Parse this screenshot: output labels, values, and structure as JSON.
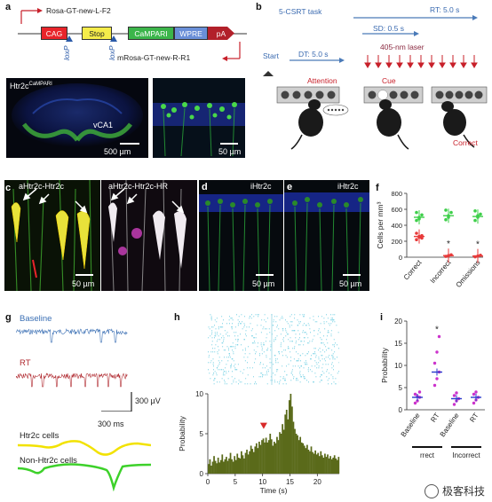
{
  "panels": {
    "a": {
      "label": "a",
      "primers": {
        "forward": "Rosa-GT-new-L-F2",
        "reverse": "mRosa-GT-new-R-R1"
      },
      "construct": {
        "segments": [
          "CAG",
          "Stop",
          "CaMPARI",
          "WPRE",
          "pA"
        ],
        "lox_labels": [
          "loxP",
          "loxP"
        ],
        "colors": {
          "CAG": "#e8242a",
          "Stop": "#f5ec4a",
          "CaMPARI": "#3bb54a",
          "WPRE": "#6a8fd8",
          "pA": "#b2202a"
        }
      },
      "brain_image": {
        "title": "Htr2c",
        "title_sup": "CaMPARI",
        "region": "vCA1",
        "scale": "500 µm"
      },
      "zoom_image": {
        "scale": "50 µm"
      }
    },
    "b": {
      "label": "b",
      "task_title": "5-CSRT task",
      "rt": "RT: 5.0 s",
      "sd": "SD: 0.5 s",
      "laser": "405-nm laser",
      "start": "Start",
      "dt": "DT: 5.0 s",
      "stages": [
        "Attention",
        "Cue",
        "Correct"
      ],
      "stage_color": "#c8202a"
    },
    "c": {
      "label": "c",
      "img1_title": "aHtr2c-Htr2c",
      "img2_title": "aHtr2c-Htr2c-HR",
      "scale": "50 µm"
    },
    "d": {
      "label": "d",
      "title": "iHtr2c",
      "scale": "50 µm"
    },
    "e": {
      "label": "e",
      "title": "iHtr2c",
      "scale": "50 µm"
    },
    "f": {
      "label": "f",
      "scale_note": "",
      "ylabel": "Cells per mm³"
    },
    "g": {
      "label": "g",
      "trace1": "Baseline",
      "trace2": "RT",
      "scale_v": "300 µV",
      "scale_t": "300 ms",
      "wave1": "Htr2c cells",
      "wave2": "Non-Htr2c cells",
      "colors": {
        "baseline": "#3a6fb4",
        "rt": "#b02a30",
        "htr2c": "#f2e200",
        "nonhtr2c": "#3dd12a"
      }
    },
    "h": {
      "label": "h",
      "ylabel": "Probability",
      "xlabel": "Time (s)",
      "raster_color": "#7fd4e6",
      "hist_color": "#5a6a1a"
    },
    "i": {
      "label": "i",
      "ylabel": "Probability",
      "groups": [
        "Correct",
        "Incorrect"
      ],
      "group_visible": [
        "rrect",
        "Incorrect"
      ],
      "categories": [
        "Baseline",
        "RT",
        "Baseline",
        "RT"
      ]
    }
  },
  "chart_data": [
    {
      "type": "scatter",
      "panel": "f",
      "ylabel": "Cells per mm³",
      "categories": [
        "Correct",
        "Incorrect",
        "Omissions"
      ],
      "yticks": [
        0,
        200,
        400,
        600,
        800
      ],
      "ylim": [
        0,
        800
      ],
      "series": [
        {
          "color": "#e83a3a",
          "values": [
            {
              "cat": "Correct",
              "mean": 260,
              "points": [
                220,
                250,
                270,
                300,
                260,
                240
              ]
            },
            {
              "cat": "Incorrect",
              "mean": 20,
              "points": [
                10,
                20,
                30
              ]
            },
            {
              "cat": "Omissions",
              "mean": 15,
              "points": [
                5,
                15,
                25
              ]
            }
          ]
        },
        {
          "color": "#3ecf4a",
          "values": [
            {
              "cat": "Correct",
              "mean": 500,
              "points": [
                460,
                500,
                530,
                560,
                480
              ]
            },
            {
              "cat": "Incorrect",
              "mean": 520,
              "points": [
                470,
                520,
                560,
                590,
                500
              ]
            },
            {
              "cat": "Omissions",
              "mean": 510,
              "points": [
                460,
                500,
                540,
                580,
                520
              ]
            }
          ]
        }
      ],
      "annotations": [
        "*",
        "*"
      ]
    },
    {
      "type": "bar",
      "panel": "h",
      "xlabel": "Time (s)",
      "ylabel": "Probability",
      "xticks": [
        0,
        5,
        10,
        15,
        20
      ],
      "yticks": [
        0,
        5,
        10
      ],
      "xlim": [
        0,
        24
      ],
      "ylim": [
        0,
        10
      ],
      "marker_x": 10.2,
      "values": [
        1.2,
        1.8,
        1.0,
        1.5,
        2.2,
        1.6,
        1.3,
        2.0,
        1.4,
        1.7,
        2.4,
        1.5,
        1.8,
        2.1,
        1.6,
        1.9,
        2.6,
        1.8,
        1.5,
        2.2,
        1.7,
        2.5,
        2.0,
        1.9,
        2.8,
        2.3,
        1.9,
        2.6,
        3.0,
        2.4,
        2.8,
        3.5,
        3.1,
        2.7,
        3.4,
        3.8,
        3.2,
        4.0,
        3.6,
        4.2,
        4.4,
        3.9,
        4.5,
        3.9,
        4.2,
        5.0,
        4.3,
        3.5,
        4.0,
        3.8,
        4.6,
        4.2,
        5.2,
        5.0,
        6.2,
        5.5,
        7.4,
        8.0,
        6.8,
        9.2,
        10.0,
        8.4,
        6.5,
        5.6,
        5.0,
        4.8,
        4.2,
        4.6,
        3.9,
        3.8,
        3.5,
        3.2,
        3.6,
        3.0,
        2.8,
        3.4,
        2.7,
        2.5,
        2.9,
        2.4,
        2.6,
        2.2,
        2.8,
        2.3,
        2.0,
        2.5,
        2.1,
        2.4,
        1.9,
        2.2,
        1.8,
        2.0,
        2.3,
        1.9,
        1.7,
        2.1
      ]
    },
    {
      "type": "scatter",
      "panel": "i",
      "ylabel": "Probability",
      "categories": [
        "Baseline",
        "RT",
        "Baseline",
        "RT"
      ],
      "yticks": [
        0,
        5,
        10,
        15,
        20
      ],
      "ylim": [
        0,
        20
      ],
      "means": [
        2.8,
        8.5,
        2.5,
        2.8
      ],
      "points": [
        [
          1.5,
          2.0,
          2.8,
          3.5,
          3.0,
          4.0
        ],
        [
          5.5,
          7.0,
          8.5,
          10.5,
          13.0,
          16.5
        ],
        [
          1.2,
          2.0,
          2.5,
          3.2,
          3.8
        ],
        [
          1.5,
          2.2,
          2.8,
          3.5,
          4.0
        ]
      ],
      "color": "#cc33cc",
      "mean_color": "#2a3acc",
      "annotations": [
        "*"
      ]
    }
  ],
  "watermark": "极客科技"
}
